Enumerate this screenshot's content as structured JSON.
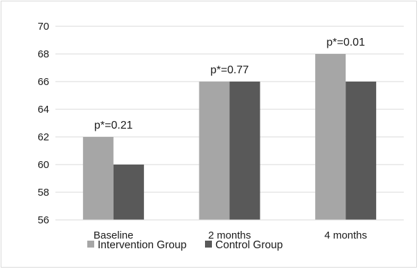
{
  "chart_data": {
    "type": "bar",
    "categories": [
      "Baseline",
      "2 months",
      "4 months"
    ],
    "series": [
      {
        "name": "Intervention Group",
        "color": "#a6a6a6",
        "values": [
          62,
          66,
          68
        ]
      },
      {
        "name": "Control Group",
        "color": "#595959",
        "values": [
          60,
          66,
          66
        ]
      }
    ],
    "annotations": [
      "p*=0.21",
      "p*=0.77",
      "p*=0.01"
    ],
    "ylim": [
      56,
      70
    ],
    "yticks": [
      56,
      58,
      60,
      62,
      64,
      66,
      68,
      70
    ],
    "grid": true,
    "gridline_color": "#d9d9d9",
    "legend_position": "bottom-left"
  }
}
